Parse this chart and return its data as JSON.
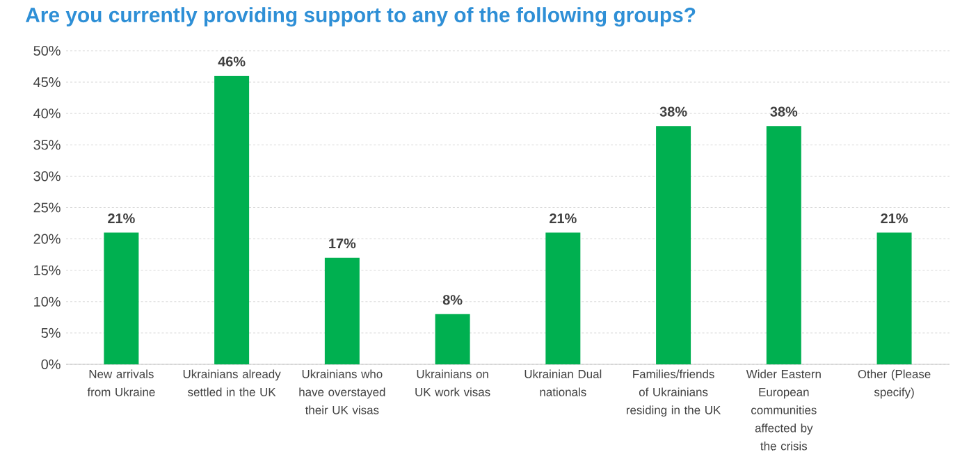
{
  "chart_data": {
    "type": "bar",
    "title": "Are you currently providing support to any of the following groups?",
    "categories": [
      "New arrivals from Ukraine",
      "Ukrainians already settled in the UK",
      "Ukrainians who have overstayed their UK visas",
      "Ukrainians on UK work visas",
      "Ukrainian Dual nationals",
      "Families/friends of Ukrainians residing in the UK",
      "Wider Eastern European communities affected by the crisis",
      "Other (Please specify)"
    ],
    "values": [
      21,
      46,
      17,
      8,
      21,
      38,
      38,
      21
    ],
    "value_labels": [
      "21%",
      "46%",
      "17%",
      "8%",
      "21%",
      "38%",
      "38%",
      "21%"
    ],
    "color": "#00b050",
    "ylim": [
      0,
      50
    ],
    "yticks": [
      {
        "value": 0,
        "label": "0%"
      },
      {
        "value": 5,
        "label": "5%"
      },
      {
        "value": 10,
        "label": "10%"
      },
      {
        "value": 15,
        "label": "15%"
      },
      {
        "value": 20,
        "label": "20%"
      },
      {
        "value": 25,
        "label": "25%"
      },
      {
        "value": 30,
        "label": "30%"
      },
      {
        "value": 35,
        "label": "35%"
      },
      {
        "value": 40,
        "label": "40%"
      },
      {
        "value": 45,
        "label": "45%"
      },
      {
        "value": 50,
        "label": "50%"
      }
    ],
    "grid": "y"
  }
}
